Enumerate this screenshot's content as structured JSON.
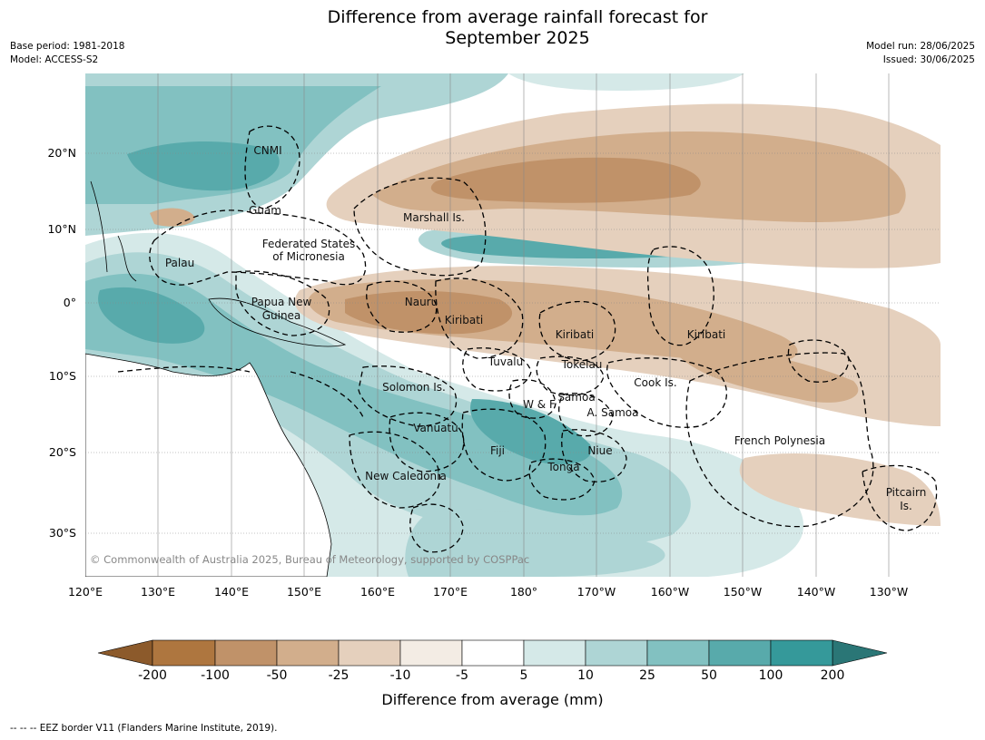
{
  "title_line1": "Difference from average rainfall forecast for",
  "title_line2": "September 2025",
  "meta_left": [
    "Base period: 1981-2018",
    "Model: ACCESS-S2"
  ],
  "meta_right": [
    "Model run: 28/06/2025",
    "Issued: 30/06/2025"
  ],
  "lon_ticks": [
    "120°E",
    "130°E",
    "140°E",
    "150°E",
    "160°E",
    "170°E",
    "180°",
    "170°W",
    "160°W",
    "150°W",
    "140°W",
    "130°W"
  ],
  "lat_ticks": [
    "20°N",
    "10°N",
    "0°",
    "10°S",
    "20°S",
    "30°S"
  ],
  "region_labels": [
    "CNMI",
    "Guam",
    "Marshall Is.",
    "Federated States",
    "of Micronesia",
    "Palau",
    "Papua New",
    "Guinea",
    "Nauru",
    "Kiribati",
    "Kiribati",
    "Kiribati",
    "Tuvalu",
    "Tokelau",
    "Solomon Is.",
    "W & F",
    "Samoa",
    "A. Samoa",
    "Cook Is.",
    "Vanuatu",
    "Fiji",
    "Niue",
    "Tonga",
    "New Caledonia",
    "French Polynesia",
    "Pitcairn",
    "Is."
  ],
  "copyright": "© Commonwealth of Australia 2025, Bureau of Meteorology, supported by COSPPac",
  "colorbar": {
    "labels": [
      "-200",
      "-100",
      "-50",
      "-25",
      "-10",
      "-5",
      "5",
      "10",
      "25",
      "50",
      "100",
      "200"
    ],
    "colors": [
      "#8c5a2b",
      "#ae763f",
      "#c09269",
      "#d2ae8c",
      "#e5d0bd",
      "#f3ece4",
      "#ffffff",
      "#d5e9e8",
      "#aed5d5",
      "#82c1c1",
      "#58aaab",
      "#35999a",
      "#2a7676"
    ],
    "title": "Difference from average (mm)"
  },
  "footer": "--  --  -- EEZ border V11 (Flanders Marine Institute, 2019)."
}
